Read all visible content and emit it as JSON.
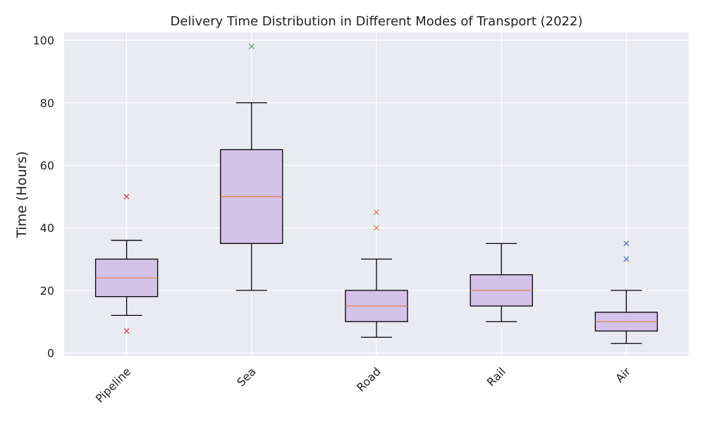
{
  "chart_data": {
    "type": "box",
    "title": "Delivery Time Distribution in Different Modes of Transport (2022)",
    "xlabel": "",
    "ylabel": "Time (Hours)",
    "ylim": [
      -1,
      102.5
    ],
    "yticks": [
      0,
      20,
      40,
      60,
      80,
      100
    ],
    "grid": true,
    "categories": [
      "Pipeline",
      "Sea",
      "Road",
      "Rail",
      "Air"
    ],
    "boxes": [
      {
        "category": "Pipeline",
        "whisker_low": 12,
        "q1": 18,
        "median": 24,
        "q3": 30,
        "whisker_high": 36,
        "outliers": [
          50,
          7
        ]
      },
      {
        "category": "Sea",
        "whisker_low": 20,
        "q1": 35,
        "median": 50,
        "q3": 65,
        "whisker_high": 80,
        "outliers": [
          98
        ]
      },
      {
        "category": "Road",
        "whisker_low": 5,
        "q1": 10,
        "median": 15,
        "q3": 20,
        "whisker_high": 30,
        "outliers": [
          45,
          40
        ]
      },
      {
        "category": "Rail",
        "whisker_low": 10,
        "q1": 15,
        "median": 20,
        "q3": 25,
        "whisker_high": 35,
        "outliers": []
      },
      {
        "category": "Air",
        "whisker_low": 3,
        "q1": 7,
        "median": 10,
        "q3": 13,
        "whisker_high": 20,
        "outliers": [
          35,
          30
        ]
      }
    ],
    "colors": {
      "background": "#eaeaf2",
      "grid": "#ffffff",
      "box_fill": "#d4c2e8",
      "box_edge": "#000000",
      "median": "#dd8452",
      "outliers": [
        "#c44e52",
        "#55a868",
        "#dd8452",
        "#4c72b0",
        "#4c72b0"
      ]
    }
  }
}
